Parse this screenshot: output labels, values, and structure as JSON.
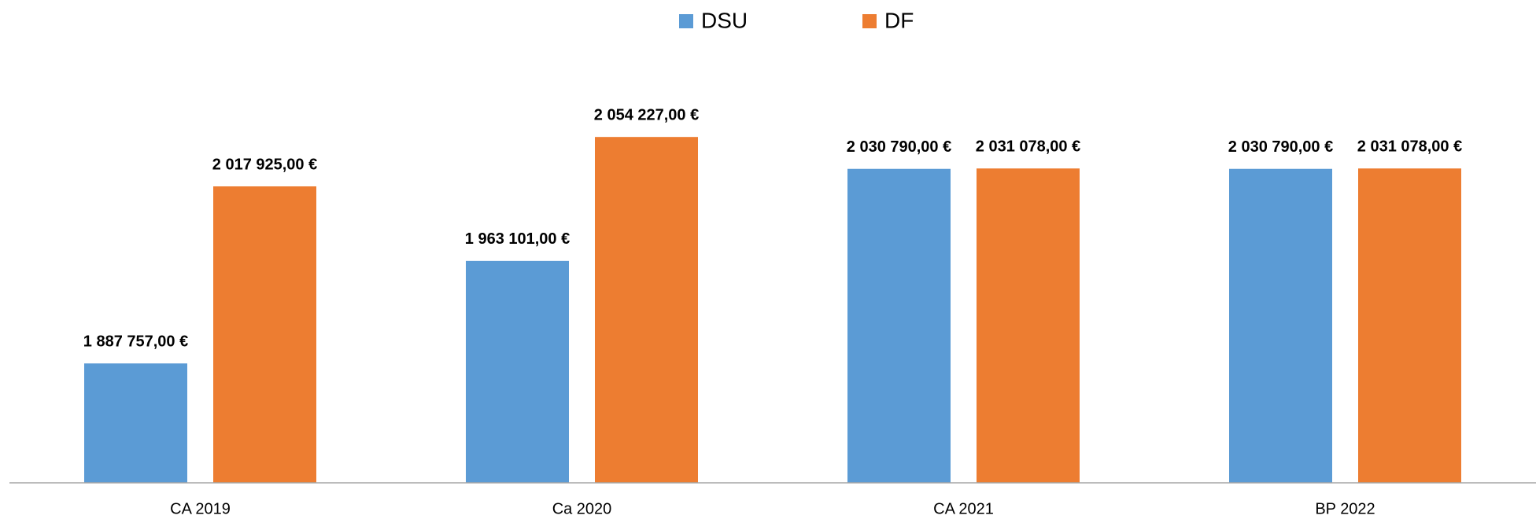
{
  "chart_data": {
    "type": "bar",
    "categories": [
      "CA 2019",
      "Ca 2020",
      "CA 2021",
      "BP 2022"
    ],
    "series": [
      {
        "name": "DSU",
        "color": "#5b9bd5",
        "values": [
          1887757,
          1963101,
          2030790,
          2030790
        ],
        "value_labels": [
          "1 887 757,00 €",
          "1 963 101,00 €",
          "2 030 790,00 €",
          "2 030 790,00 €"
        ]
      },
      {
        "name": "DF",
        "color": "#ed7d31",
        "values": [
          2017925,
          2054227,
          2031078,
          2031078
        ],
        "value_labels": [
          "2 017 925,00 €",
          "2 054 227,00 €",
          "2 031 078,00 €",
          "2 031 078,00 €"
        ]
      }
    ],
    "ylim": [
      1800000,
      2100000
    ],
    "legend": "top"
  }
}
